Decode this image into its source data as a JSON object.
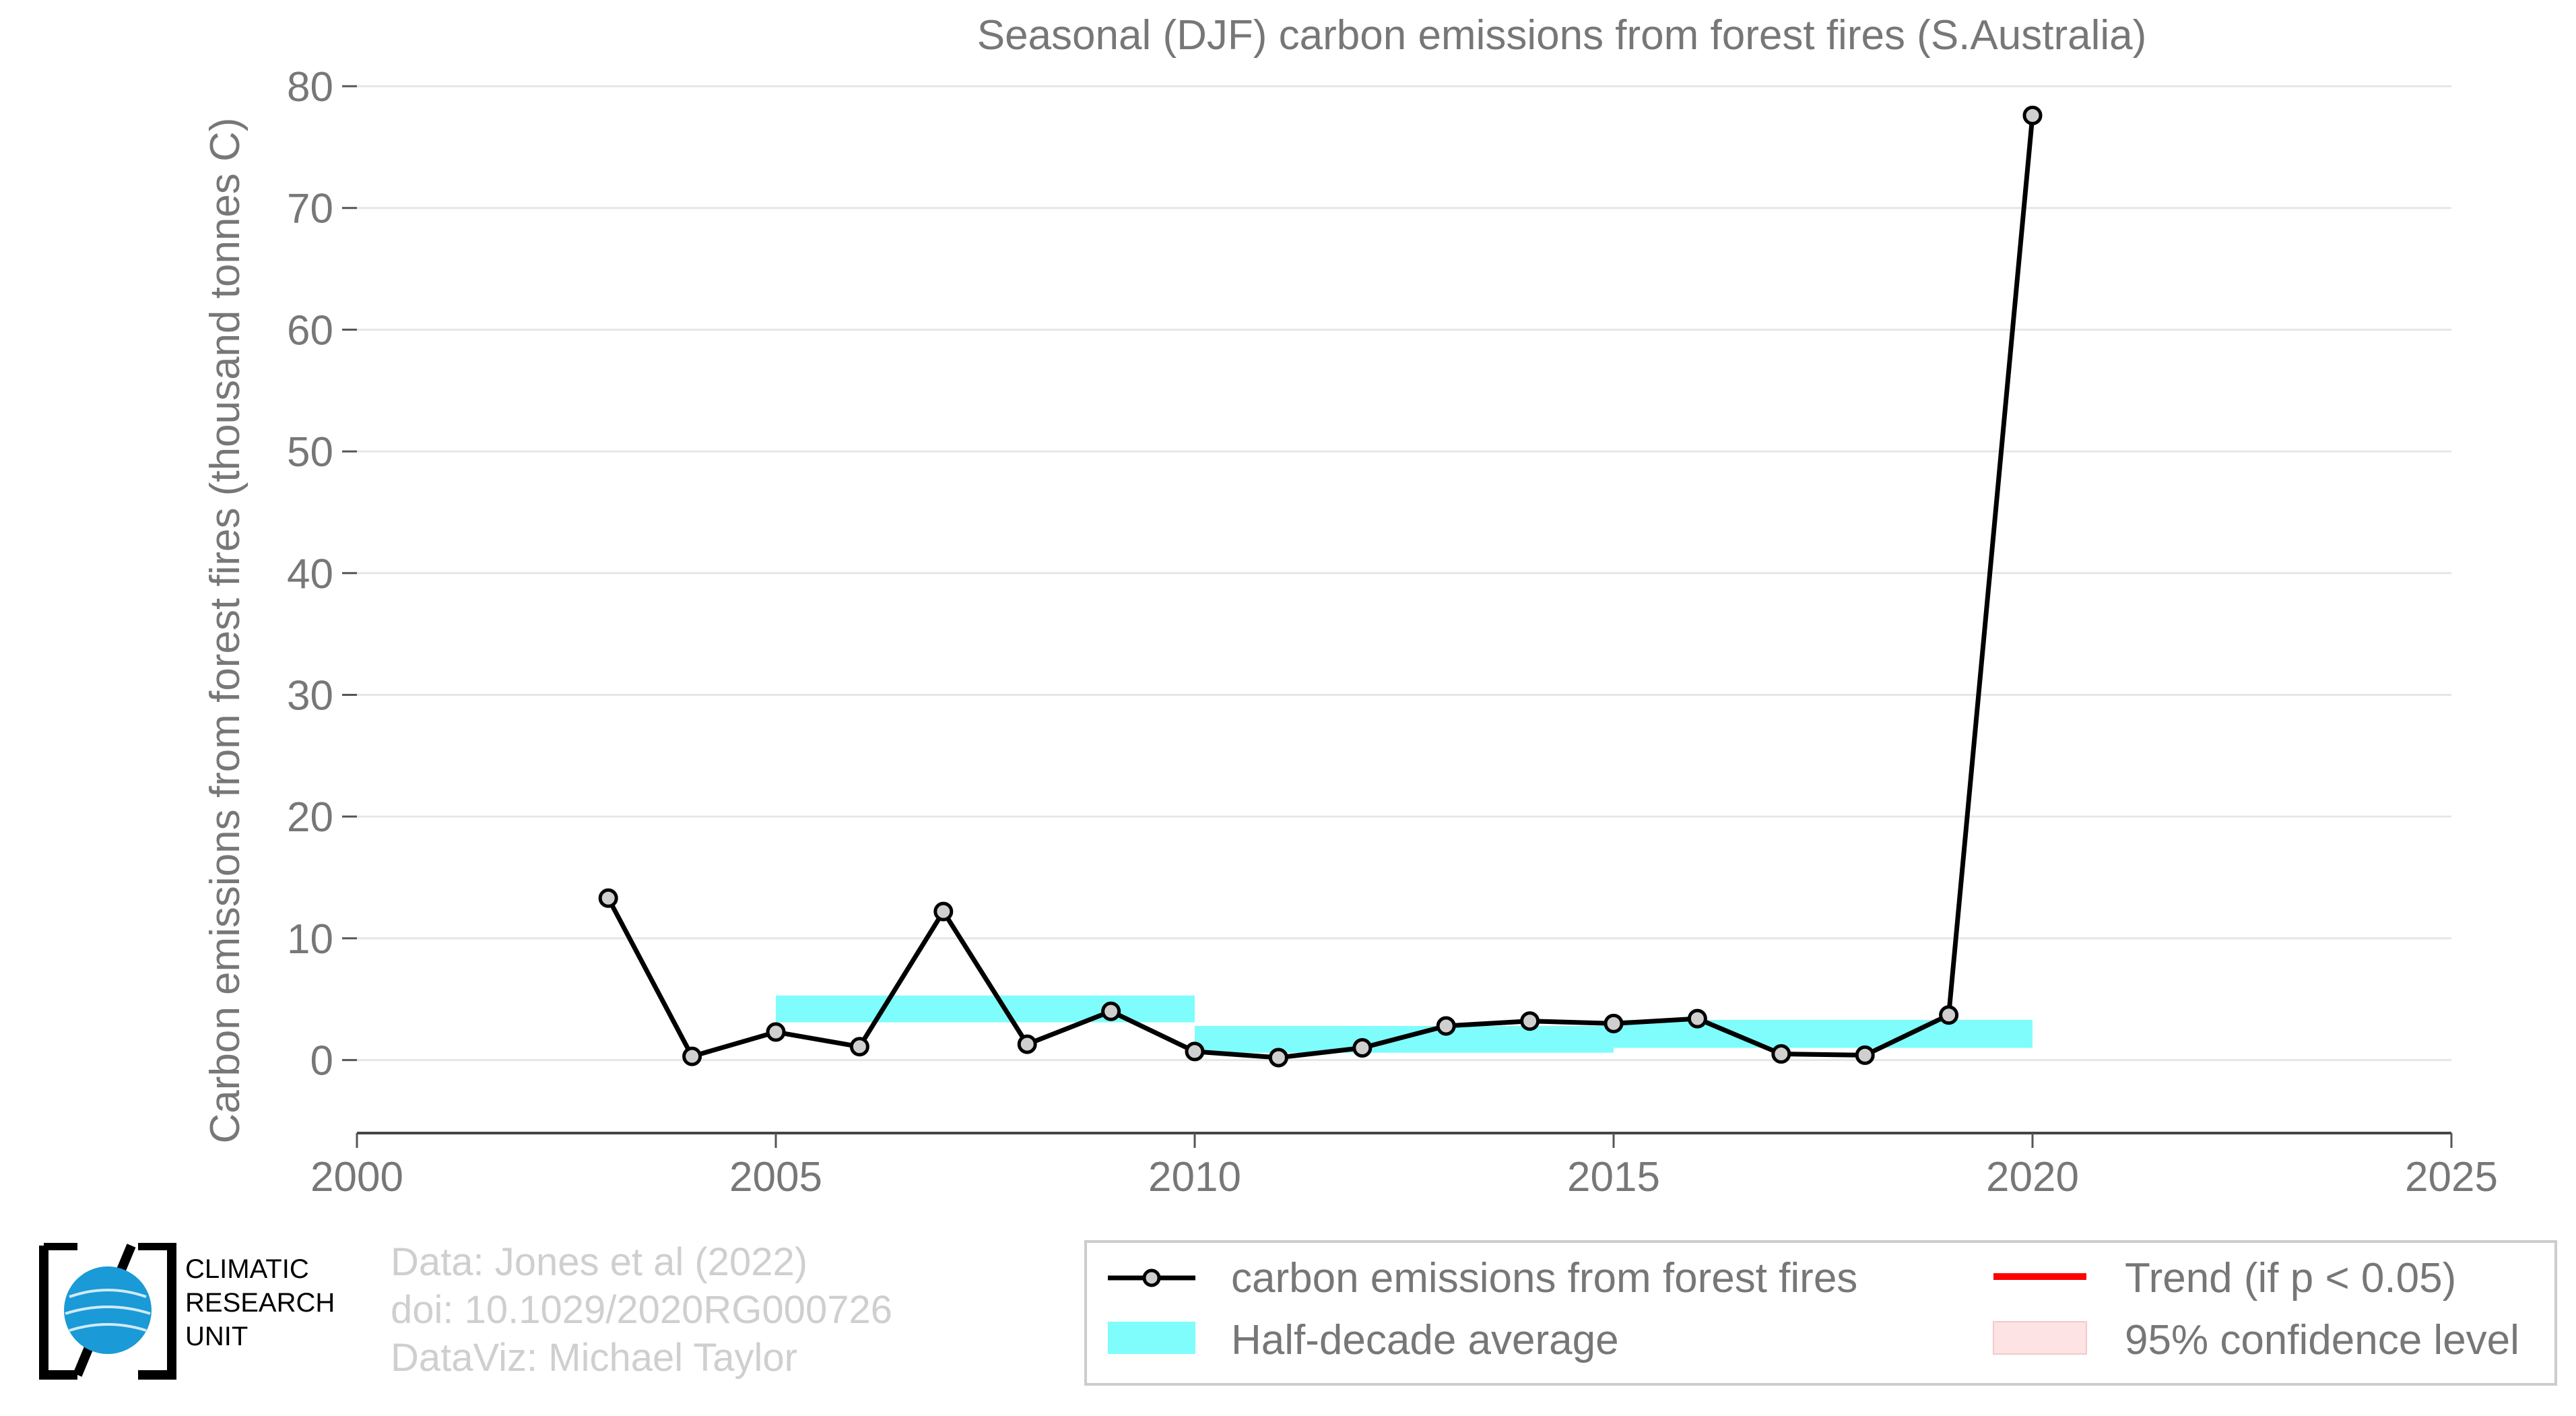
{
  "chart_data": {
    "type": "line",
    "title": "Seasonal (DJF) carbon emissions from forest fires (S.Australia)",
    "xlabel": "",
    "ylabel": "Carbon emissions from forest fires (thousand tonnes C)",
    "xlim": [
      2000,
      2025
    ],
    "ylim": [
      -6,
      80
    ],
    "xticks": [
      "2000",
      "2005",
      "2010",
      "2015",
      "2020",
      "2025"
    ],
    "yticks": [
      "0",
      "10",
      "20",
      "30",
      "40",
      "50",
      "60",
      "70",
      "80"
    ],
    "grid": "horizontal",
    "series": [
      {
        "name": "carbon emissions from forest fires",
        "x": [
          2003,
          2004,
          2005,
          2006,
          2007,
          2008,
          2009,
          2010,
          2011,
          2012,
          2013,
          2014,
          2015,
          2016,
          2017,
          2018,
          2019,
          2020
        ],
        "values": [
          13.3,
          0.3,
          2.3,
          1.1,
          12.2,
          1.3,
          4.0,
          0.7,
          0.2,
          1.0,
          2.8,
          3.2,
          3.0,
          3.4,
          0.5,
          0.4,
          3.7,
          77.6
        ]
      }
    ],
    "half_decade_average": {
      "name": "Half-decade average",
      "bands": [
        {
          "x0": 2005,
          "x1": 2010,
          "low": 3.1,
          "high": 5.3
        },
        {
          "x0": 2010,
          "x1": 2015,
          "low": 0.6,
          "high": 2.8
        },
        {
          "x0": 2015,
          "x1": 2020,
          "low": 1.0,
          "high": 3.3
        }
      ]
    },
    "legend": {
      "placement": "bottom-right",
      "entries": [
        {
          "label": "carbon emissions from forest fires",
          "kind": "line-marker",
          "color": "#000000"
        },
        {
          "label": "Trend (if p < 0.05)",
          "kind": "line",
          "color": "#ff0000"
        },
        {
          "label": "Half-decade average",
          "kind": "band",
          "color": "#7ffdfd"
        },
        {
          "label": "95% confidence level",
          "kind": "band",
          "color": "#fde3e3"
        }
      ]
    },
    "colors": {
      "line": "#000000",
      "marker_fill": "#cfcfcf",
      "band": "#7ffdfd",
      "trend": "#ff0000",
      "ci": "#fde3e3",
      "grid": "#e6e6e6",
      "text": "#777777"
    }
  },
  "credits": {
    "data": "Data: Jones et al (2022)",
    "doi": "doi: 10.1029/2020RG000726",
    "dataviz": "DataViz: Michael Taylor"
  },
  "logo": {
    "line1": "CLIMATIC",
    "line2": "RESEARCH",
    "line3": "UNIT",
    "icon": "globe-icon"
  }
}
